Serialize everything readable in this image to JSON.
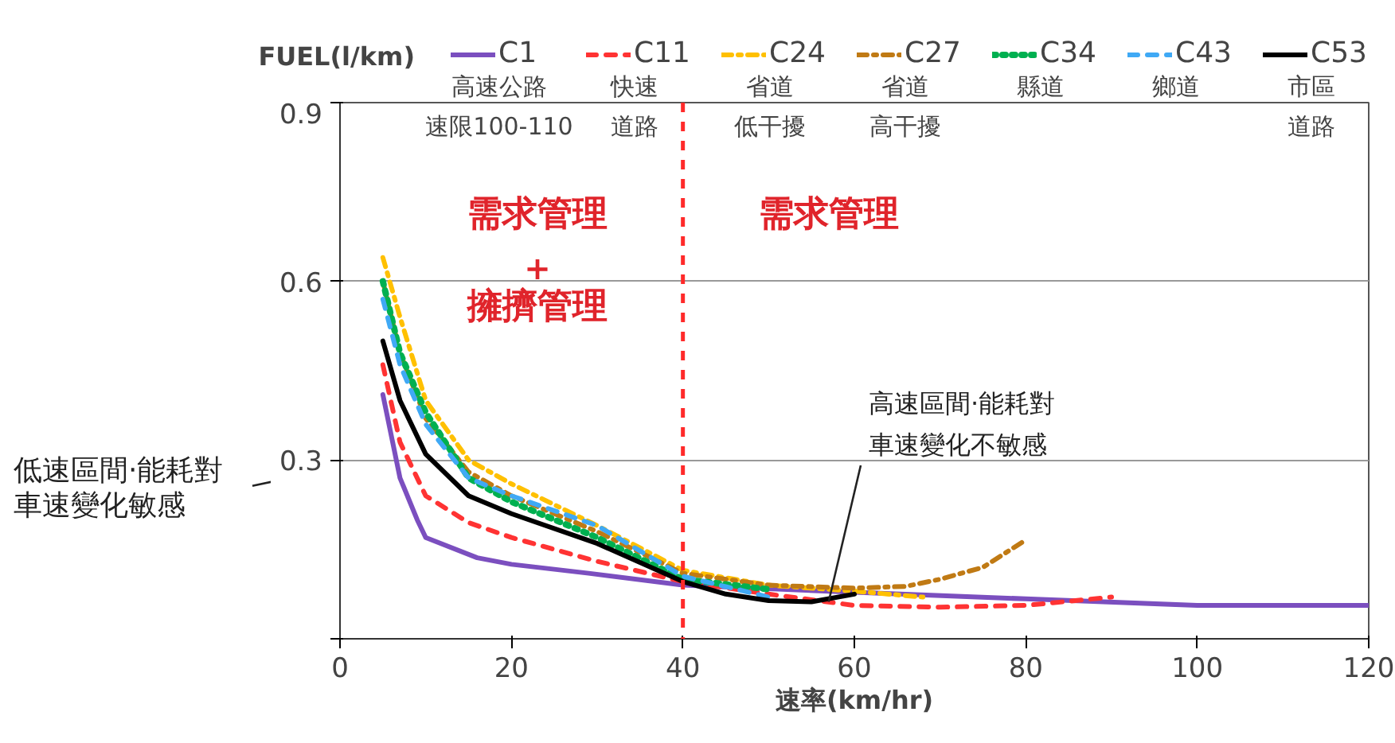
{
  "chart_data": {
    "type": "line",
    "xlabel": "速率(km/hr)",
    "ylabel": "FUEL(l/km)",
    "xlim": [
      0,
      120
    ],
    "xticks": [
      0,
      20,
      40,
      60,
      80,
      100,
      120
    ],
    "ylim": [
      0,
      0.9
    ],
    "yticks": [
      {
        "value": 0,
        "label": null
      },
      0.3,
      0.6,
      0.9
    ],
    "grid": "y",
    "legend": "top",
    "series": [
      {
        "name": "C1",
        "color": "#7b4fbf",
        "line_style": "solid",
        "x": [
          5,
          7,
          9,
          10,
          16,
          20,
          29,
          40,
          60,
          80,
          100,
          120
        ],
        "values": [
          0.41,
          0.27,
          0.2,
          0.17,
          0.136,
          0.125,
          0.11,
          0.09,
          0.078,
          0.067,
          0.056,
          0.056
        ]
      },
      {
        "name": "C11",
        "color": "#ff3333",
        "line_style": "dashed",
        "x": [
          5,
          7,
          10,
          15,
          20,
          30,
          40,
          50,
          60,
          70,
          80,
          90
        ],
        "values": [
          0.46,
          0.33,
          0.24,
          0.195,
          0.17,
          0.13,
          0.096,
          0.075,
          0.056,
          0.053,
          0.056,
          0.07
        ]
      },
      {
        "name": "C24",
        "color": "#ffc000",
        "line_style": "dashdot",
        "x": [
          5,
          7,
          10,
          15,
          20,
          30,
          40,
          50,
          60,
          68
        ],
        "values": [
          0.64,
          0.54,
          0.4,
          0.3,
          0.26,
          0.19,
          0.115,
          0.09,
          0.08,
          0.07
        ]
      },
      {
        "name": "C27",
        "color": "#c07a14",
        "line_style": "dashdot",
        "x": [
          5,
          7,
          10,
          15,
          20,
          30,
          40,
          50,
          60,
          66,
          70,
          75,
          80
        ],
        "values": [
          0.6,
          0.48,
          0.37,
          0.28,
          0.24,
          0.18,
          0.11,
          0.09,
          0.085,
          0.088,
          0.1,
          0.12,
          0.166
        ]
      },
      {
        "name": "C34",
        "color": "#00b050",
        "line_style": "dotted",
        "x": [
          5,
          7,
          10,
          15,
          20,
          30,
          40,
          50
        ],
        "values": [
          0.6,
          0.48,
          0.38,
          0.27,
          0.23,
          0.17,
          0.1,
          0.083
        ]
      },
      {
        "name": "C43",
        "color": "#3fa9f5",
        "line_style": "dashed",
        "x": [
          5,
          7,
          10,
          15,
          20,
          30,
          40,
          50
        ],
        "values": [
          0.57,
          0.46,
          0.36,
          0.27,
          0.24,
          0.19,
          0.105,
          0.07
        ]
      },
      {
        "name": "C53",
        "color": "#000000",
        "line_style": "solid",
        "x": [
          5,
          7,
          10,
          15,
          20,
          30,
          40,
          45,
          50,
          55,
          60
        ],
        "values": [
          0.5,
          0.4,
          0.31,
          0.24,
          0.21,
          0.16,
          0.096,
          0.075,
          0.064,
          0.062,
          0.075
        ]
      }
    ],
    "ref_lines": [
      {
        "axis": "x",
        "value": 40,
        "color": "#ff2a2a",
        "line_style": "dashed"
      }
    ],
    "annotations": [
      "高速公路",
      "快速",
      "省道",
      "省道",
      "縣道",
      "鄉道",
      "市區",
      "速限100-110",
      "道路",
      "低干擾",
      "高干擾",
      "道路",
      "需求管理",
      "+",
      "擁擠管理",
      "需求管理",
      {
        "text": "高速區間·能耗對車速變化不敏感",
        "x": 57,
        "y": 0.062
      },
      "低速區間·能耗對車速變化敏感"
    ]
  }
}
